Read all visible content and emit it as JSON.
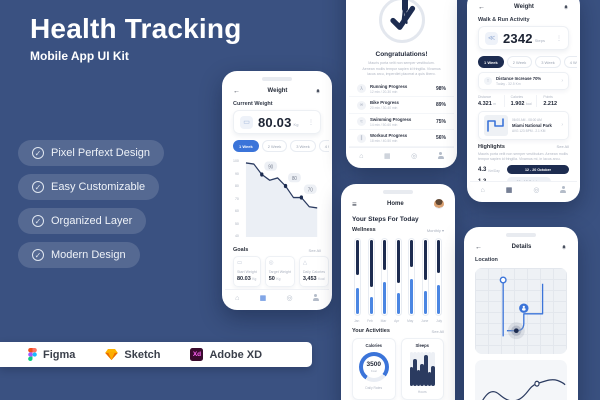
{
  "hero": {
    "title": "Health Tracking",
    "subtitle": "Mobile App UI Kit"
  },
  "features": {
    "items": [
      "Pixel Perfext Design",
      "Easy Customizable",
      "Organized Layer",
      "Modern Design"
    ]
  },
  "tools": {
    "figma": "Figma",
    "sketch": "Sketch",
    "xd": "Adobe XD",
    "xd_mark": "Xd"
  },
  "icon_glyphs": {
    "check-icon": "✓",
    "back-icon": "←",
    "kebab-icon": "⋮",
    "menu-icon": "≡",
    "chevron-down-icon": "▾",
    "chevron-right-icon": "›",
    "up-icon": "↑",
    "home-icon": "⌂",
    "dashboard-icon": "▦",
    "pin-icon": "◎",
    "scale-icon": "▭",
    "target-icon": "◎",
    "calories-icon": "△",
    "running-icon": "λ",
    "bike-icon": "∞",
    "swimming-icon": "≈",
    "workout-icon": "∥",
    "shoe-icon": "≪"
  },
  "weight": {
    "title": "Weight",
    "section": "Current Weight",
    "value": "80.03",
    "unit": "Kg",
    "tabs": [
      "1 Week",
      "2 Week",
      "3 Week",
      "4 Week"
    ],
    "active_tab": 0,
    "chart": {
      "y_ticks": [
        "100",
        "90",
        "80",
        "70",
        "60",
        "50",
        "40"
      ],
      "points": [
        100,
        99,
        90,
        85,
        87,
        80,
        70,
        70,
        62,
        61
      ],
      "markers": [
        {
          "i": 2,
          "t": "90"
        },
        {
          "i": 5,
          "t": "80"
        },
        {
          "i": 7,
          "t": "70"
        }
      ]
    },
    "goals_title": "Goals",
    "see_all": "See All",
    "goals": [
      {
        "icon": "scale-icon",
        "label": "Start Weight",
        "value": "80.03",
        "unit": "Kg"
      },
      {
        "icon": "target-icon",
        "label": "Target Weight",
        "value": "50",
        "unit": "Kg"
      },
      {
        "icon": "calories-icon",
        "label": "Daily Calories",
        "value": "3,453",
        "unit": "Kcal"
      }
    ]
  },
  "congrats": {
    "title": "Congratulations!",
    "description": "Mauris porta velit non semper vestibulum. Aenean mollis tempor sapien id fringilla. Vivamus lacus arcu, imperdiet placerat a quis libero.",
    "progress": [
      {
        "icon": "running-icon",
        "label": "Running Progress",
        "detail": "12 min / 20-30 min",
        "percent": "98%"
      },
      {
        "icon": "bike-icon",
        "label": "Bike Progress",
        "detail": "20 min / 30-40 min",
        "percent": "89%"
      },
      {
        "icon": "swimming-icon",
        "label": "Swimming Progress",
        "detail": "14 min / 50-60 min",
        "percent": "75%"
      },
      {
        "icon": "workout-icon",
        "label": "Workout Progress",
        "detail": "18 min / 40-50 min",
        "percent": "56%"
      }
    ]
  },
  "activity": {
    "title": "Weight",
    "section": "Walk & Run Activity",
    "value": "2342",
    "unit": "Steps",
    "tabs": [
      "1 Week",
      "2 Week",
      "3 Week",
      "4 Week"
    ],
    "active_tab": 0,
    "distance": {
      "label": "Distance Increase 70%",
      "sub": "Today - 32.5 Km"
    },
    "stats": [
      {
        "label": "Distance",
        "value": "4.321",
        "unit": "m"
      },
      {
        "label": "Calories",
        "value": "1.902",
        "unit": "kcal"
      },
      {
        "label": "Points",
        "value": "2.212",
        "unit": ""
      }
    ],
    "route": {
      "time": "06:00 AM - 08:00 AM",
      "place": "Miami National Park",
      "detail": "AVG 123 BPM - 2.1 KM"
    },
    "highlights_title": "Highlights",
    "see_all": "See All",
    "highlights_text": "Mauris porta velit non semper vestibulum. Aenean mollis tempor sapien id fringilla. Vivamus mi, in lacus arcu.",
    "highlights": [
      {
        "value": "4.3",
        "unit": "Km/Day",
        "range": "12 - 20 October"
      },
      {
        "value": "1.3",
        "unit": "Km/Day",
        "range": "08 - 12 October"
      }
    ]
  },
  "home": {
    "title": "Home",
    "heading": "Your Steps For Today",
    "wellness_label": "Wellness",
    "period": "Monthly",
    "months": [
      "Jan",
      "Feb",
      "Mar",
      "Apr",
      "May",
      "June",
      "July"
    ],
    "wellness_bars": [
      {
        "dark": 46,
        "blue": 34
      },
      {
        "dark": 62,
        "blue": 22
      },
      {
        "dark": 40,
        "blue": 42
      },
      {
        "dark": 56,
        "blue": 28
      },
      {
        "dark": 36,
        "blue": 46
      },
      {
        "dark": 52,
        "blue": 30
      },
      {
        "dark": 44,
        "blue": 38
      }
    ],
    "activities_title": "Your Activities",
    "see_all": "See All",
    "calories": {
      "title": "Calories",
      "value": "3500",
      "unit": "Kcal",
      "footer": "Daily Rates",
      "percent": 76
    },
    "sleeps": {
      "title": "Sleeps",
      "footer": "Hours",
      "bars": [
        55,
        78,
        48,
        66,
        92,
        42,
        60
      ]
    }
  },
  "details": {
    "title": "Details",
    "section": "Location"
  },
  "colors": {
    "background": "#3a5181",
    "accent_blue": "#3b74d9",
    "navy": "#1d2c50"
  }
}
